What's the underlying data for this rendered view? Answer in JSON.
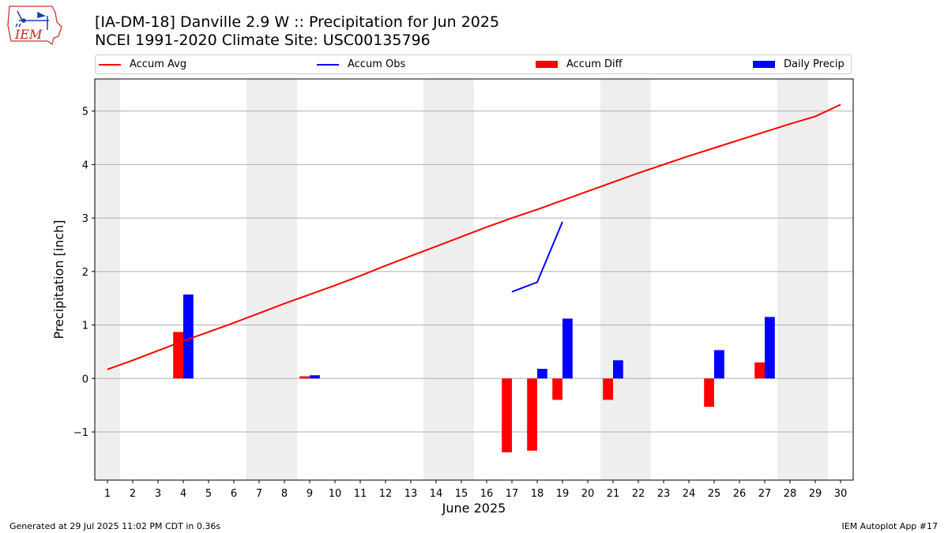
{
  "title_line1": "[IA-DM-18] Danville 2.9 W :: Precipitation for Jun 2025",
  "title_line2": "NCEI 1991-2020 Climate Site: USC00135796",
  "logo_text": "IEM",
  "footer_left": "Generated at 29 Jul 2025 11:02 PM CDT in 0.36s",
  "footer_right": "IEM Autoplot App #17",
  "colors": {
    "avg": "#ff0000",
    "obs": "#0000ff",
    "diff": "#ff0000",
    "daily": "#0000ff",
    "weekend": "#eeeeee",
    "grid": "#b0b0b0"
  },
  "legend": [
    {
      "label": "Accum Avg",
      "kind": "line",
      "color": "#ff0000"
    },
    {
      "label": "Accum Obs",
      "kind": "line",
      "color": "#0000ff"
    },
    {
      "label": "Accum Diff",
      "kind": "box",
      "color": "#ff0000"
    },
    {
      "label": "Daily Precip",
      "kind": "box",
      "color": "#0000ff"
    }
  ],
  "chart_data": {
    "type": "bar",
    "xlabel": "June 2025",
    "ylabel": "Precipitation [inch]",
    "xlim": [
      0.5,
      30.5
    ],
    "ylim": [
      -1.9,
      5.6
    ],
    "yticks": [
      -1,
      0,
      1,
      2,
      3,
      4,
      5
    ],
    "ytick_labels": [
      "−1",
      "0",
      "1",
      "2",
      "3",
      "4",
      "5"
    ],
    "x": [
      1,
      2,
      3,
      4,
      5,
      6,
      7,
      8,
      9,
      10,
      11,
      12,
      13,
      14,
      15,
      16,
      17,
      18,
      19,
      20,
      21,
      22,
      23,
      24,
      25,
      26,
      27,
      28,
      29,
      30
    ],
    "x_labels": [
      "1",
      "2",
      "3",
      "4",
      "5",
      "6",
      "7",
      "8",
      "9",
      "10",
      "11",
      "12",
      "13",
      "14",
      "15",
      "16",
      "17",
      "18",
      "19",
      "20",
      "21",
      "22",
      "23",
      "24",
      "25",
      "26",
      "27",
      "28",
      "29",
      "30"
    ],
    "weekend_days": [
      1,
      7,
      8,
      14,
      15,
      21,
      22,
      28,
      29
    ],
    "grid": "y",
    "legend_position": "top",
    "series": [
      {
        "name": "Accum Avg",
        "type": "line",
        "values": [
          0.17,
          0.34,
          0.52,
          0.7,
          0.87,
          1.04,
          1.22,
          1.4,
          1.57,
          1.74,
          1.92,
          2.11,
          2.29,
          2.47,
          2.65,
          2.83,
          3.0,
          3.16,
          3.33,
          3.5,
          3.67,
          3.84,
          4.0,
          4.16,
          4.31,
          4.46,
          4.61,
          4.76,
          4.9,
          5.12
        ]
      },
      {
        "name": "Accum Obs",
        "type": "line",
        "x": [
          17,
          18,
          19
        ],
        "values": [
          1.62,
          1.8,
          2.93
        ]
      },
      {
        "name": "Accum Diff",
        "type": "bar",
        "x": [
          4,
          9,
          17,
          18,
          19,
          21,
          25,
          27
        ],
        "values": [
          0.87,
          0.04,
          -1.38,
          -1.35,
          -0.4,
          -0.4,
          -0.53,
          0.3
        ]
      },
      {
        "name": "Daily Precip",
        "type": "bar",
        "x": [
          4,
          9,
          18,
          19,
          21,
          25,
          27
        ],
        "values": [
          1.57,
          0.06,
          0.18,
          1.12,
          0.34,
          0.53,
          1.15
        ]
      }
    ]
  }
}
